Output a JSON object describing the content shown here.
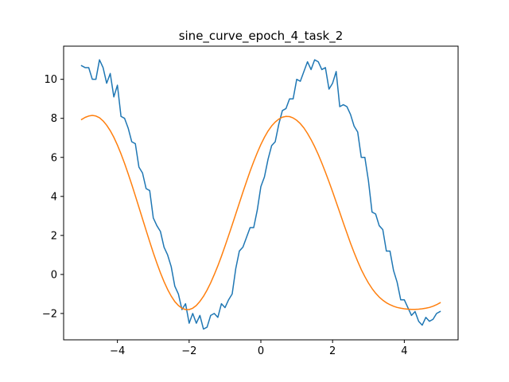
{
  "chart_data": {
    "type": "line",
    "title": "sine_curve_epoch_4_task_2",
    "xlabel": "",
    "ylabel": "",
    "xlim": [
      -5.5,
      5.5
    ],
    "ylim": [
      -3.35,
      11.7
    ],
    "grid": false,
    "legend": "none",
    "x_ticks": [
      -4,
      -2,
      0,
      2,
      4
    ],
    "y_ticks": [
      -2,
      0,
      2,
      4,
      6,
      8,
      10
    ],
    "series": [
      {
        "color": "#1f77b4",
        "x": [
          -5.0,
          -4.9,
          -4.8,
          -4.7,
          -4.6,
          -4.5,
          -4.4,
          -4.3,
          -4.2,
          -4.1,
          -4.0,
          -3.9,
          -3.8,
          -3.7,
          -3.6,
          -3.5,
          -3.4,
          -3.3,
          -3.2,
          -3.1,
          -3.0,
          -2.9,
          -2.8,
          -2.7,
          -2.6,
          -2.5,
          -2.4,
          -2.3,
          -2.2,
          -2.1,
          -2.0,
          -1.9,
          -1.8,
          -1.7,
          -1.6,
          -1.5,
          -1.4,
          -1.3,
          -1.2,
          -1.1,
          -1.0,
          -0.9,
          -0.8,
          -0.7,
          -0.6,
          -0.5,
          -0.4,
          -0.3,
          -0.2,
          -0.1,
          0.0,
          0.1,
          0.2,
          0.3,
          0.4,
          0.5,
          0.6,
          0.7,
          0.8,
          0.9,
          1.0,
          1.1,
          1.2,
          1.3,
          1.4,
          1.5,
          1.6,
          1.7,
          1.8,
          1.9,
          2.0,
          2.1,
          2.2,
          2.3,
          2.4,
          2.5,
          2.6,
          2.7,
          2.8,
          2.9,
          3.0,
          3.1,
          3.2,
          3.3,
          3.4,
          3.5,
          3.6,
          3.7,
          3.8,
          3.9,
          4.0,
          4.1,
          4.2,
          4.3,
          4.4,
          4.5,
          4.6,
          4.7,
          4.8,
          4.9,
          5.0
        ],
        "y": [
          10.7,
          10.6,
          10.6,
          10.0,
          10.0,
          11.0,
          10.6,
          9.8,
          10.3,
          9.1,
          9.7,
          8.1,
          8.0,
          7.5,
          6.8,
          6.7,
          5.5,
          5.2,
          4.4,
          4.3,
          2.9,
          2.5,
          2.2,
          1.4,
          1.0,
          0.4,
          -0.6,
          -1.0,
          -1.8,
          -1.5,
          -2.5,
          -2.0,
          -2.5,
          -2.1,
          -2.8,
          -2.7,
          -2.1,
          -2.0,
          -2.2,
          -1.5,
          -1.7,
          -1.3,
          -1.0,
          0.3,
          1.2,
          1.4,
          1.9,
          2.4,
          2.4,
          3.3,
          4.5,
          5.0,
          5.9,
          6.6,
          6.8,
          7.7,
          8.4,
          8.5,
          9.0,
          9.0,
          10.0,
          9.9,
          10.4,
          10.9,
          10.5,
          11.0,
          10.9,
          10.5,
          10.6,
          9.5,
          9.8,
          10.4,
          8.6,
          8.7,
          8.6,
          8.2,
          7.6,
          7.3,
          6.0,
          6.0,
          4.8,
          3.2,
          3.1,
          2.5,
          2.3,
          1.2,
          1.2,
          0.2,
          -0.4,
          -1.3,
          -1.3,
          -1.7,
          -2.1,
          -1.9,
          -2.4,
          -2.6,
          -2.2,
          -2.4,
          -2.3,
          -2.0,
          -1.9
        ]
      },
      {
        "color": "#ff7f0e",
        "x": [
          -5.0,
          -4.9,
          -4.8,
          -4.7,
          -4.6,
          -4.5,
          -4.4,
          -4.3,
          -4.2,
          -4.1,
          -4.0,
          -3.9,
          -3.8,
          -3.7,
          -3.6,
          -3.5,
          -3.4,
          -3.3,
          -3.2,
          -3.1,
          -3.0,
          -2.9,
          -2.8,
          -2.7,
          -2.6,
          -2.5,
          -2.4,
          -2.3,
          -2.2,
          -2.1,
          -2.0,
          -1.9,
          -1.8,
          -1.7,
          -1.6,
          -1.5,
          -1.4,
          -1.3,
          -1.2,
          -1.1,
          -1.0,
          -0.9,
          -0.8,
          -0.7,
          -0.6,
          -0.5,
          -0.4,
          -0.3,
          -0.2,
          -0.1,
          0.0,
          0.1,
          0.2,
          0.3,
          0.4,
          0.5,
          0.6,
          0.7,
          0.8,
          0.9,
          1.0,
          1.1,
          1.2,
          1.3,
          1.4,
          1.5,
          1.6,
          1.7,
          1.8,
          1.9,
          2.0,
          2.1,
          2.2,
          2.3,
          2.4,
          2.5,
          2.6,
          2.7,
          2.8,
          2.9,
          3.0,
          3.1,
          3.2,
          3.3,
          3.4,
          3.5,
          3.6,
          3.7,
          3.8,
          3.9,
          4.0,
          4.1,
          4.2,
          4.3,
          4.4,
          4.5,
          4.6,
          4.7,
          4.8,
          4.9,
          5.0
        ],
        "y": [
          7.94,
          8.05,
          8.12,
          8.15,
          8.12,
          8.03,
          7.87,
          7.65,
          7.37,
          7.03,
          6.63,
          6.18,
          5.69,
          5.16,
          4.61,
          4.03,
          3.44,
          2.85,
          2.26,
          1.68,
          1.11,
          0.58,
          0.08,
          -0.37,
          -0.77,
          -1.11,
          -1.39,
          -1.59,
          -1.73,
          -1.8,
          -1.8,
          -1.73,
          -1.59,
          -1.38,
          -1.12,
          -0.8,
          -0.43,
          -0.01,
          0.44,
          0.93,
          1.45,
          1.99,
          2.54,
          3.1,
          3.66,
          4.22,
          4.76,
          5.29,
          5.78,
          6.24,
          6.66,
          7.03,
          7.35,
          7.61,
          7.81,
          7.96,
          8.06,
          8.1,
          8.09,
          8.02,
          7.9,
          7.73,
          7.51,
          7.23,
          6.91,
          6.55,
          6.15,
          5.71,
          5.24,
          4.75,
          4.24,
          3.71,
          3.18,
          2.64,
          2.12,
          1.6,
          1.12,
          0.67,
          0.25,
          -0.11,
          -0.44,
          -0.72,
          -0.96,
          -1.16,
          -1.32,
          -1.45,
          -1.55,
          -1.63,
          -1.69,
          -1.73,
          -1.76,
          -1.78,
          -1.79,
          -1.79,
          -1.78,
          -1.76,
          -1.73,
          -1.69,
          -1.63,
          -1.55,
          -1.45
        ]
      }
    ]
  }
}
